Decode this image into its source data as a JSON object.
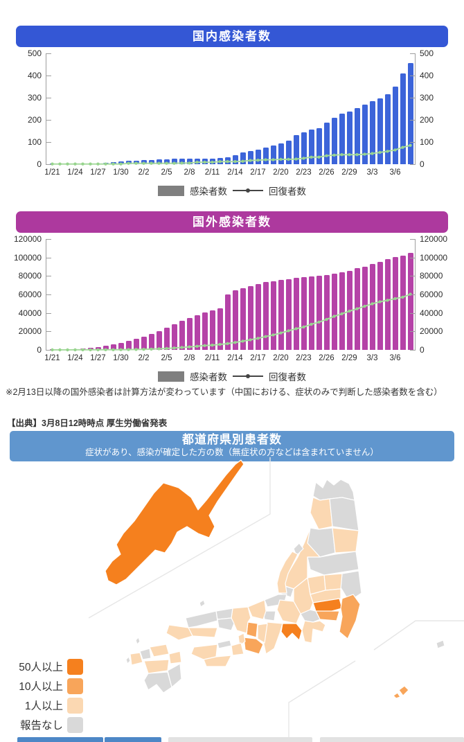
{
  "chart_data": [
    {
      "type": "bar",
      "title": "国内感染者数",
      "header_color": "#3457d5",
      "bar_color": "#3c64d9",
      "line_color": "#a9dba1",
      "marker_color": "#97d48e",
      "legend_bar_color": "#7f7f7f",
      "legend_bar_label": "感染者数",
      "legend_line_label": "回復者数",
      "ymax": 500,
      "ystep": 100,
      "yticks": [
        "0",
        "100",
        "200",
        "300",
        "400",
        "500"
      ],
      "xticks": [
        "1/21",
        "1/24",
        "1/27",
        "1/30",
        "2/2",
        "2/5",
        "2/8",
        "2/11",
        "2/14",
        "2/17",
        "2/20",
        "2/23",
        "2/26",
        "2/29",
        "3/3",
        "3/6"
      ],
      "dates": [
        "1/21",
        "1/22",
        "1/23",
        "1/24",
        "1/25",
        "1/26",
        "1/27",
        "1/28",
        "1/29",
        "1/30",
        "1/31",
        "2/1",
        "2/2",
        "2/3",
        "2/4",
        "2/5",
        "2/6",
        "2/7",
        "2/8",
        "2/9",
        "2/10",
        "2/11",
        "2/12",
        "2/13",
        "2/14",
        "2/15",
        "2/16",
        "2/17",
        "2/18",
        "2/19",
        "2/20",
        "2/21",
        "2/22",
        "2/23",
        "2/24",
        "2/25",
        "2/26",
        "2/27",
        "2/28",
        "2/29",
        "3/1",
        "3/2",
        "3/3",
        "3/4",
        "3/5",
        "3/6",
        "3/7",
        "3/8"
      ],
      "bars": [
        1,
        1,
        1,
        2,
        3,
        4,
        4,
        7,
        8,
        11,
        15,
        17,
        20,
        20,
        23,
        23,
        25,
        25,
        25,
        26,
        26,
        26,
        28,
        32,
        41,
        53,
        59,
        65,
        74,
        84,
        94,
        105,
        132,
        144,
        157,
        164,
        186,
        210,
        228,
        239,
        254,
        268,
        284,
        296,
        317,
        349,
        408,
        455
      ],
      "line": [
        1,
        1,
        1,
        1,
        1,
        1,
        1,
        1,
        1,
        1,
        4,
        4,
        4,
        4,
        4,
        4,
        4,
        5,
        5,
        9,
        9,
        9,
        12,
        12,
        12,
        13,
        17,
        18,
        20,
        20,
        22,
        22,
        23,
        27,
        32,
        32,
        38,
        41,
        43,
        43,
        43,
        45,
        48,
        53,
        58,
        64,
        76,
        85
      ]
    },
    {
      "type": "bar",
      "title": "国外感染者数",
      "header_color": "#ad399e",
      "bar_color": "#b542a7",
      "line_color": "#a9dba1",
      "marker_color": "#97d48e",
      "legend_bar_color": "#7f7f7f",
      "legend_bar_label": "感染者数",
      "legend_line_label": "回復者数",
      "note": "※2月13日以降の国外感染者は計算方法が変わっています（中国における、症状のみで判断した感染者数を含む）",
      "ymax": 120000,
      "ystep": 20000,
      "yticks": [
        "0",
        "20000",
        "40000",
        "60000",
        "80000",
        "100000",
        "120000"
      ],
      "xticks": [
        "1/21",
        "1/24",
        "1/27",
        "1/30",
        "2/2",
        "2/5",
        "2/8",
        "2/11",
        "2/14",
        "2/17",
        "2/20",
        "2/23",
        "2/26",
        "2/29",
        "3/3",
        "3/6"
      ],
      "dates": [
        "1/21",
        "1/22",
        "1/23",
        "1/24",
        "1/25",
        "1/26",
        "1/27",
        "1/28",
        "1/29",
        "1/30",
        "1/31",
        "2/1",
        "2/2",
        "2/3",
        "2/4",
        "2/5",
        "2/6",
        "2/7",
        "2/8",
        "2/9",
        "2/10",
        "2/11",
        "2/12",
        "2/13",
        "2/14",
        "2/15",
        "2/16",
        "2/17",
        "2/18",
        "2/19",
        "2/20",
        "2/21",
        "2/22",
        "2/23",
        "2/24",
        "2/25",
        "2/26",
        "2/27",
        "2/28",
        "2/29",
        "3/1",
        "3/2",
        "3/3",
        "3/4",
        "3/5",
        "3/6",
        "3/7",
        "3/8"
      ],
      "bars": [
        314,
        454,
        620,
        870,
        1320,
        2000,
        2800,
        4500,
        5900,
        7700,
        9700,
        11800,
        14400,
        17200,
        20500,
        24300,
        28000,
        31300,
        34600,
        37300,
        40200,
        42700,
        44800,
        60300,
        64300,
        66900,
        68900,
        71200,
        73200,
        74500,
        75600,
        76600,
        77700,
        78700,
        79400,
        80100,
        81100,
        82400,
        83800,
        85800,
        88200,
        90300,
        92700,
        95000,
        97900,
        100200,
        102300,
        105100
      ],
      "line": [
        30,
        30,
        34,
        38,
        49,
        60,
        103,
        124,
        171,
        243,
        328,
        475,
        632,
        852,
        1124,
        1487,
        1999,
        2596,
        3219,
        3918,
        4636,
        5082,
        5911,
        6723,
        8058,
        9395,
        10865,
        12552,
        14376,
        16121,
        18264,
        20659,
        22888,
        24734,
        27676,
        30084,
        32898,
        36329,
        39002,
        41958,
        44462,
        47204,
        49856,
        52045,
        53726,
        55404,
        57065,
        60190
      ]
    },
    {
      "type": "choropleth",
      "title": "都道府県別患者数",
      "subtitle": "症状があり、感染が確定した方の数（無症状の方などは含まれていません）",
      "header_color": "#6096ce",
      "levels": {
        "50plus": {
          "label": "50人以上",
          "color": "#f5801e"
        },
        "10plus": {
          "label": "10人以上",
          "color": "#f8a55a"
        },
        "1plus": {
          "label": "1人以上",
          "color": "#fbd8b2"
        },
        "none": {
          "label": "報告なし",
          "color": "#d9d9d9"
        }
      },
      "prefectures": {
        "hokkaido": "50plus",
        "aomori": "none",
        "iwate": "none",
        "akita": "1plus",
        "yamagata": "none",
        "miyagi": "1plus",
        "fukushima": "none",
        "ibaraki": "none",
        "tochigi": "1plus",
        "gunma": "1plus",
        "saitama": "1plus",
        "tokyo": "50plus",
        "chiba": "10plus",
        "kanagawa": "10plus",
        "niigata": "1plus",
        "sado": "none",
        "toyama": "none",
        "ishikawa": "1plus",
        "fukui": "none",
        "nagano": "1plus",
        "yamanashi": "none",
        "shizuoka": "1plus",
        "gifu": "1plus",
        "aichi": "50plus",
        "mie": "1plus",
        "shiga": "none",
        "kyoto": "1plus",
        "osaka": "10plus",
        "nara": "1plus",
        "wakayama": "10plus",
        "hyogo": "1plus",
        "awaji": "1plus",
        "tottori": "none",
        "shimane": "none",
        "okayama": "none",
        "hiroshima": "1plus",
        "yamaguchi": "1plus",
        "kagawa": "none",
        "tokushima": "1plus",
        "ehime": "1plus",
        "kochi": "1plus",
        "fukuoka": "1plus",
        "saga": "none",
        "nagasaki": "1plus",
        "oita": "1plus",
        "kumamoto": "1plus",
        "miyazaki": "none",
        "kagoshima": "none",
        "okinawa": "10plus",
        "okinawa2": "10plus",
        "izu_island": "none",
        "oki_island": "none",
        "tsushima": "none",
        "goto": "none"
      }
    }
  ],
  "source_line": "【出典】3月8日12時時点 厚生労働省発表",
  "bottom_bar": {
    "segments": [
      {
        "color": "#4d87c6"
      },
      {
        "color": "#4d87c6"
      },
      {
        "color": "#e2e2e2"
      },
      {
        "color": "#e2e2e2"
      }
    ]
  }
}
